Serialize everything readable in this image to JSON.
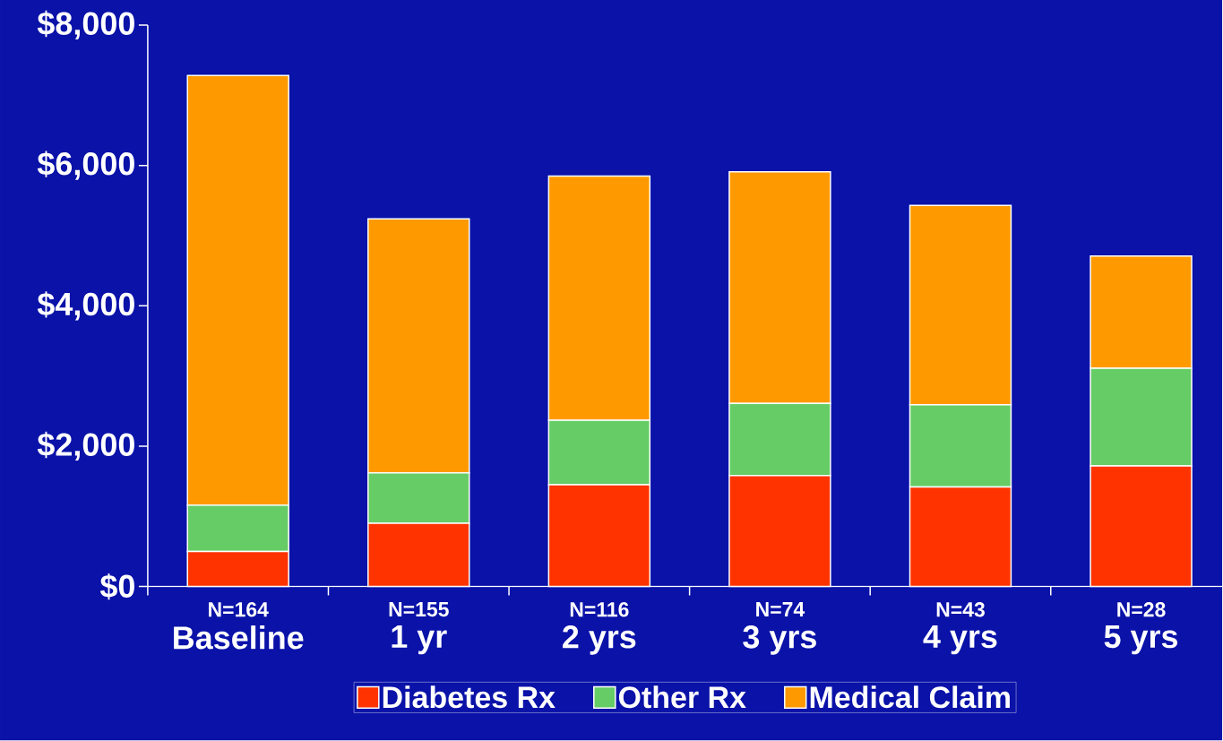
{
  "chart_data": {
    "type": "bar",
    "stacked": true,
    "categories": [
      "Baseline",
      "1 yr",
      "2 yrs",
      "3 yrs",
      "4 yrs",
      "5 yrs"
    ],
    "series": [
      {
        "name": "Diabetes Rx",
        "color": "#ff3300",
        "values": [
          500,
          900,
          1450,
          1580,
          1420,
          1720
        ]
      },
      {
        "name": "Other Rx",
        "color": "#66cc66",
        "values": [
          660,
          720,
          920,
          1030,
          1170,
          1390
        ]
      },
      {
        "name": "Medical Claim",
        "color": "#ff9900",
        "values": [
          6120,
          3620,
          3480,
          3300,
          2840,
          1600
        ]
      }
    ],
    "ylim": [
      0,
      8000
    ],
    "yticks": [
      {
        "value": 0,
        "label": "$0"
      },
      {
        "value": 2000,
        "label": "$2,000"
      },
      {
        "value": 4000,
        "label": "$4,000"
      },
      {
        "value": 6000,
        "label": "$6,000"
      },
      {
        "value": 8000,
        "label": "$8,000"
      }
    ],
    "annotations": [
      "N=164",
      "N=155",
      "N=116",
      "N=74",
      "N=43",
      "N=28"
    ],
    "legend": "bottom",
    "grid": false
  }
}
